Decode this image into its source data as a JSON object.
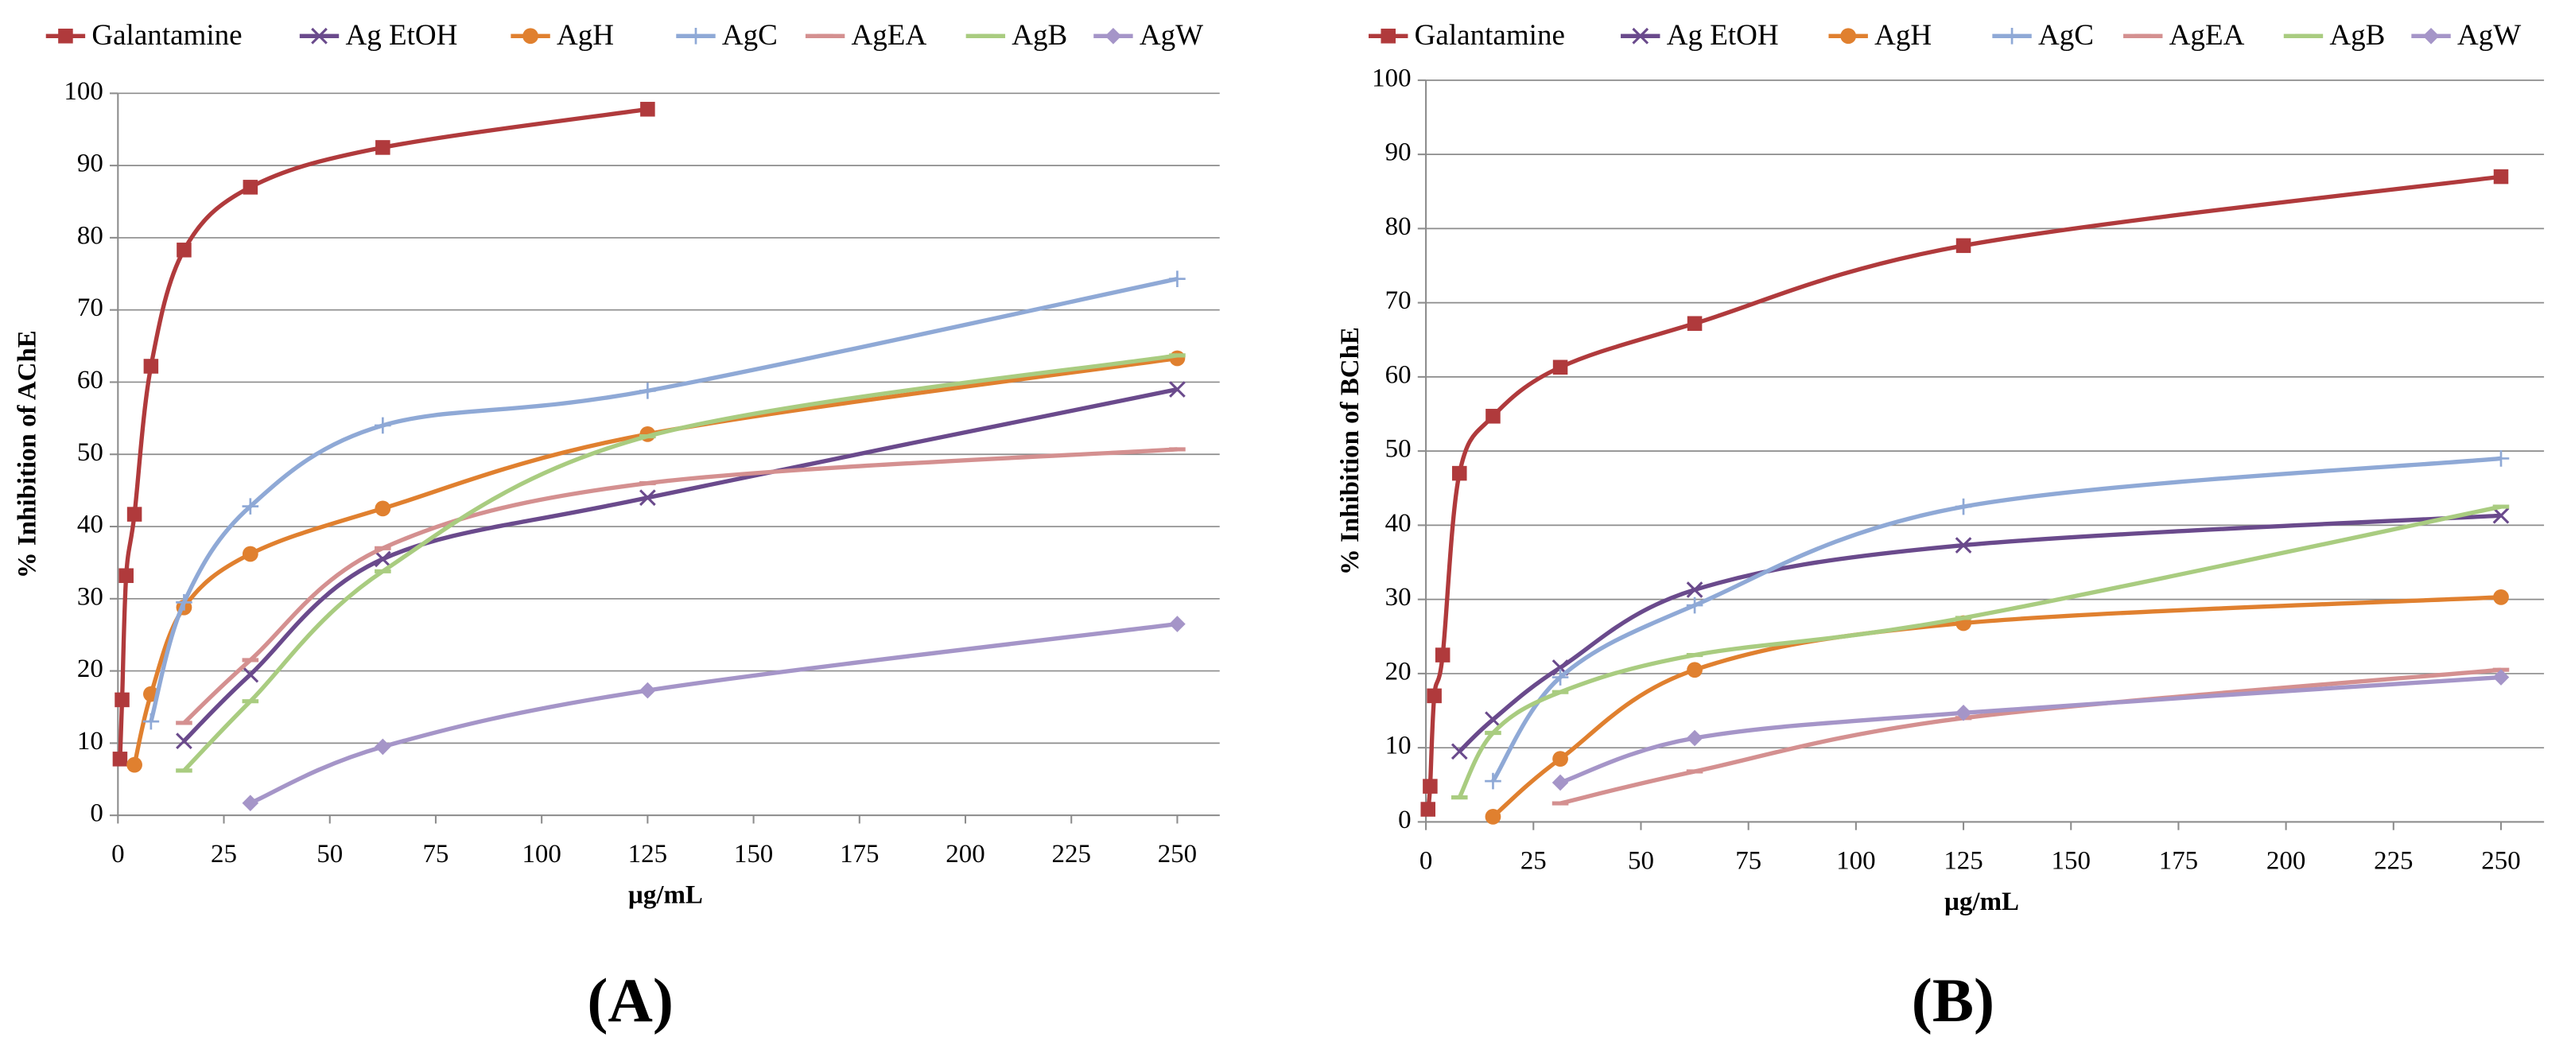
{
  "chart_data": [
    {
      "type": "line",
      "title": "(A)",
      "x_label": "µg/mL",
      "y_label": "% Inhibition of AChE",
      "xlim": [
        0,
        260
      ],
      "ylim": [
        0,
        100
      ],
      "xticks": [
        0,
        25,
        50,
        75,
        100,
        125,
        150,
        175,
        200,
        225,
        250
      ],
      "yticks": [
        0,
        10,
        20,
        30,
        40,
        50,
        60,
        70,
        80,
        90,
        100
      ],
      "grid": true,
      "legend": "top",
      "series": [
        {
          "name": "Galantamine",
          "color": "#b03a3c",
          "marker": "square",
          "x": [
            0.49,
            0.98,
            1.95,
            3.9,
            7.8,
            15.6,
            31.25,
            62.5,
            125
          ],
          "values": [
            7.8,
            16,
            33.2,
            41.7,
            62.2,
            78.3,
            87,
            92.5,
            97.8
          ]
        },
        {
          "name": "Ag EtOH",
          "color": "#6a4a8c",
          "marker": "cross",
          "x": [
            15.6,
            31.25,
            62.5,
            125,
            250
          ],
          "values": [
            10.3,
            19.5,
            35.5,
            44,
            59
          ]
        },
        {
          "name": "AgH",
          "color": "#e0802f",
          "marker": "circle",
          "x": [
            3.9,
            7.8,
            15.6,
            31.25,
            62.5,
            125,
            250
          ],
          "values": [
            7,
            16.8,
            28.8,
            36.2,
            42.5,
            52.8,
            63.3
          ]
        },
        {
          "name": "AgC",
          "color": "#8fa9d6",
          "marker": "plus",
          "x": [
            7.8,
            15.6,
            31.25,
            62.5,
            125,
            250
          ],
          "values": [
            13,
            29.5,
            42.8,
            54,
            58.8,
            74.3
          ]
        },
        {
          "name": "AgEA",
          "color": "#d49090",
          "marker": "dash",
          "x": [
            15.6,
            31.25,
            62.5,
            125,
            250
          ],
          "values": [
            12.8,
            21.5,
            37,
            46,
            50.7
          ]
        },
        {
          "name": "AgB",
          "color": "#a9cc80",
          "marker": "dash",
          "x": [
            15.6,
            31.25,
            62.5,
            125,
            250
          ],
          "values": [
            6.2,
            15.8,
            33.8,
            52.5,
            63.7
          ]
        },
        {
          "name": "AgW",
          "color": "#a595c8",
          "marker": "diamond",
          "x": [
            31.25,
            62.5,
            125,
            250
          ],
          "values": [
            1.7,
            9.5,
            17.3,
            26.5
          ]
        }
      ]
    },
    {
      "type": "line",
      "title": "(B)",
      "x_label": "µg/mL",
      "y_label": "% Inhibition of BChE",
      "xlim": [
        0,
        260
      ],
      "ylim": [
        0,
        100
      ],
      "xticks": [
        0,
        25,
        50,
        75,
        100,
        125,
        150,
        175,
        200,
        225,
        250
      ],
      "yticks": [
        0,
        10,
        20,
        30,
        40,
        50,
        60,
        70,
        80,
        90,
        100
      ],
      "grid": true,
      "legend": "top",
      "series": [
        {
          "name": "Galantamine",
          "color": "#b03a3c",
          "marker": "square",
          "x": [
            0.49,
            0.98,
            1.95,
            3.9,
            7.8,
            15.6,
            31.25,
            62.5,
            125,
            250
          ],
          "values": [
            1.7,
            4.8,
            17,
            22.5,
            47,
            54.7,
            61.3,
            67.2,
            77.7,
            87
          ]
        },
        {
          "name": "Ag EtOH",
          "color": "#6a4a8c",
          "marker": "cross",
          "x": [
            7.8,
            15.6,
            31.25,
            62.5,
            125,
            250
          ],
          "values": [
            9.5,
            13.8,
            20.8,
            31.3,
            37.3,
            41.3
          ]
        },
        {
          "name": "AgH",
          "color": "#e0802f",
          "marker": "circle",
          "x": [
            15.6,
            31.25,
            62.5,
            125,
            250
          ],
          "values": [
            0.7,
            8.5,
            20.5,
            26.8,
            30.3
          ]
        },
        {
          "name": "AgC",
          "color": "#8fa9d6",
          "marker": "plus",
          "x": [
            15.6,
            31.25,
            62.5,
            125,
            250
          ],
          "values": [
            5.5,
            19.5,
            29.2,
            42.5,
            49
          ]
        },
        {
          "name": "AgEA",
          "color": "#d49090",
          "marker": "dash",
          "x": [
            31.25,
            62.5,
            125,
            250
          ],
          "values": [
            2.5,
            6.8,
            14,
            20.5
          ]
        },
        {
          "name": "AgB",
          "color": "#a9cc80",
          "marker": "dash",
          "x": [
            7.8,
            15.6,
            31.25,
            62.5,
            125,
            250
          ],
          "values": [
            3.3,
            12,
            17.5,
            22.5,
            27.5,
            42.5
          ]
        },
        {
          "name": "AgW",
          "color": "#a595c8",
          "marker": "diamond",
          "x": [
            31.25,
            62.5,
            125,
            250
          ],
          "values": [
            5.3,
            11.3,
            14.7,
            19.5
          ]
        }
      ]
    }
  ]
}
